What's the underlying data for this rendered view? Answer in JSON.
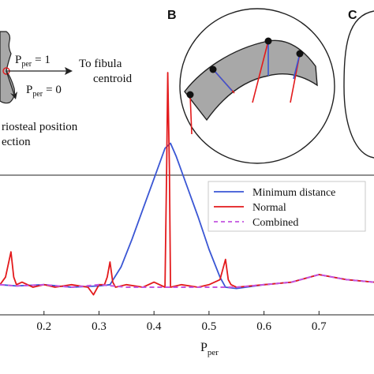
{
  "panel_a": {
    "p_per_one": "P",
    "p_per_one_sub": "per",
    "p_per_one_val": "= 1",
    "p_per_zero": "P",
    "p_per_zero_sub": "per",
    "p_per_zero_val": "= 0",
    "to_fibula_line1": "To fibula",
    "to_fibula_line2": "centroid",
    "caption_line1": "riosteal position",
    "caption_line2": "ection"
  },
  "panel_b": {
    "letter": "B"
  },
  "panel_c": {
    "letter": "C"
  },
  "chart_data": {
    "type": "line",
    "xlabel": "P",
    "xlabel_sub": "per",
    "xlim": [
      0.12,
      0.8
    ],
    "ylim": [
      0,
      1
    ],
    "x_ticks": [
      "0.2",
      "0.3",
      "0.4",
      "0.5",
      "0.6",
      "0.7"
    ],
    "legend": [
      "Minimum distance",
      "Normal",
      "Combined"
    ],
    "legend_position": "top-right",
    "colors": {
      "minimum_distance": "#3a56d4",
      "normal": "#e31a1c",
      "combined": "#c355e0"
    },
    "series": [
      {
        "name": "Minimum distance",
        "x": [
          0.12,
          0.15,
          0.2,
          0.25,
          0.3,
          0.32,
          0.34,
          0.36,
          0.38,
          0.4,
          0.42,
          0.43,
          0.44,
          0.46,
          0.48,
          0.5,
          0.52,
          0.53,
          0.55,
          0.6,
          0.65,
          0.7,
          0.75,
          0.8
        ],
        "y": [
          0.06,
          0.055,
          0.06,
          0.05,
          0.055,
          0.06,
          0.13,
          0.24,
          0.36,
          0.48,
          0.6,
          0.62,
          0.57,
          0.45,
          0.33,
          0.2,
          0.09,
          0.05,
          0.045,
          0.06,
          0.07,
          0.1,
          0.08,
          0.07
        ]
      },
      {
        "name": "Normal",
        "x": [
          0.12,
          0.13,
          0.14,
          0.145,
          0.15,
          0.16,
          0.18,
          0.2,
          0.22,
          0.25,
          0.28,
          0.29,
          0.3,
          0.31,
          0.315,
          0.32,
          0.325,
          0.33,
          0.35,
          0.38,
          0.4,
          0.42,
          0.423,
          0.425,
          0.428,
          0.43,
          0.45,
          0.48,
          0.5,
          0.52,
          0.53,
          0.535,
          0.54,
          0.55,
          0.6,
          0.65,
          0.7,
          0.75,
          0.8
        ],
        "y": [
          0.06,
          0.09,
          0.19,
          0.09,
          0.06,
          0.07,
          0.05,
          0.06,
          0.05,
          0.06,
          0.05,
          0.02,
          0.06,
          0.06,
          0.09,
          0.15,
          0.07,
          0.05,
          0.06,
          0.05,
          0.07,
          0.05,
          0.52,
          0.9,
          0.52,
          0.05,
          0.06,
          0.05,
          0.06,
          0.08,
          0.16,
          0.08,
          0.06,
          0.05,
          0.06,
          0.07,
          0.1,
          0.08,
          0.07
        ]
      },
      {
        "name": "Combined",
        "x": [
          0.12,
          0.15,
          0.2,
          0.25,
          0.3,
          0.35,
          0.4,
          0.45,
          0.5,
          0.55,
          0.6,
          0.65,
          0.7,
          0.75,
          0.8
        ],
        "y": [
          0.06,
          0.055,
          0.06,
          0.05,
          0.06,
          0.05,
          0.05,
          0.05,
          0.05,
          0.05,
          0.06,
          0.07,
          0.1,
          0.08,
          0.07
        ]
      }
    ]
  }
}
